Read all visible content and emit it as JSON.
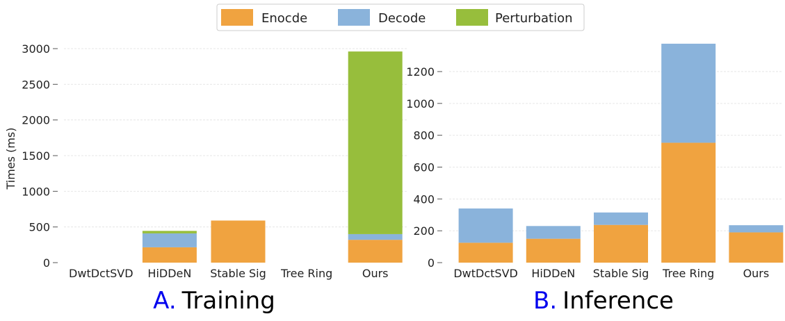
{
  "legend": {
    "items": [
      {
        "label": "Enocde",
        "color": "#F0A340"
      },
      {
        "label": "Decode",
        "color": "#8AB3DB"
      },
      {
        "label": "Perturbation",
        "color": "#97BE3C"
      }
    ]
  },
  "chart_data": [
    {
      "type": "bar",
      "stacked": true,
      "panel_letter": "A.",
      "panel_title": "Training",
      "ylabel": "Times (ms)",
      "categories": [
        "DwtDctSVD",
        "HiDDeN",
        "Stable Sig",
        "Tree Ring",
        "Ours"
      ],
      "ylim": [
        0,
        3100
      ],
      "yticks": [
        0,
        500,
        1000,
        1500,
        2000,
        2500,
        3000
      ],
      "grid": true,
      "series": [
        {
          "name": "Enocde",
          "values": [
            0,
            215,
            590,
            0,
            320
          ]
        },
        {
          "name": "Decode",
          "values": [
            0,
            195,
            0,
            0,
            80
          ]
        },
        {
          "name": "Perturbation",
          "values": [
            0,
            35,
            0,
            0,
            2560
          ]
        }
      ]
    },
    {
      "type": "bar",
      "stacked": true,
      "panel_letter": "B.",
      "panel_title": "Inference",
      "ylabel": "",
      "categories": [
        "DwtDctSVD",
        "HiDDeN",
        "Stable Sig",
        "Tree Ring",
        "Ours"
      ],
      "ylim": [
        0,
        1390
      ],
      "yticks": [
        0,
        200,
        400,
        600,
        800,
        1000,
        1200
      ],
      "grid": true,
      "series": [
        {
          "name": "Enocde",
          "values": [
            125,
            150,
            237,
            753,
            190
          ]
        },
        {
          "name": "Decode",
          "values": [
            215,
            80,
            78,
            622,
            45
          ]
        }
      ]
    }
  ],
  "colors": {
    "letter": "#0000EE",
    "grid": "#E6E6E6",
    "tick_mark": "#555555"
  }
}
